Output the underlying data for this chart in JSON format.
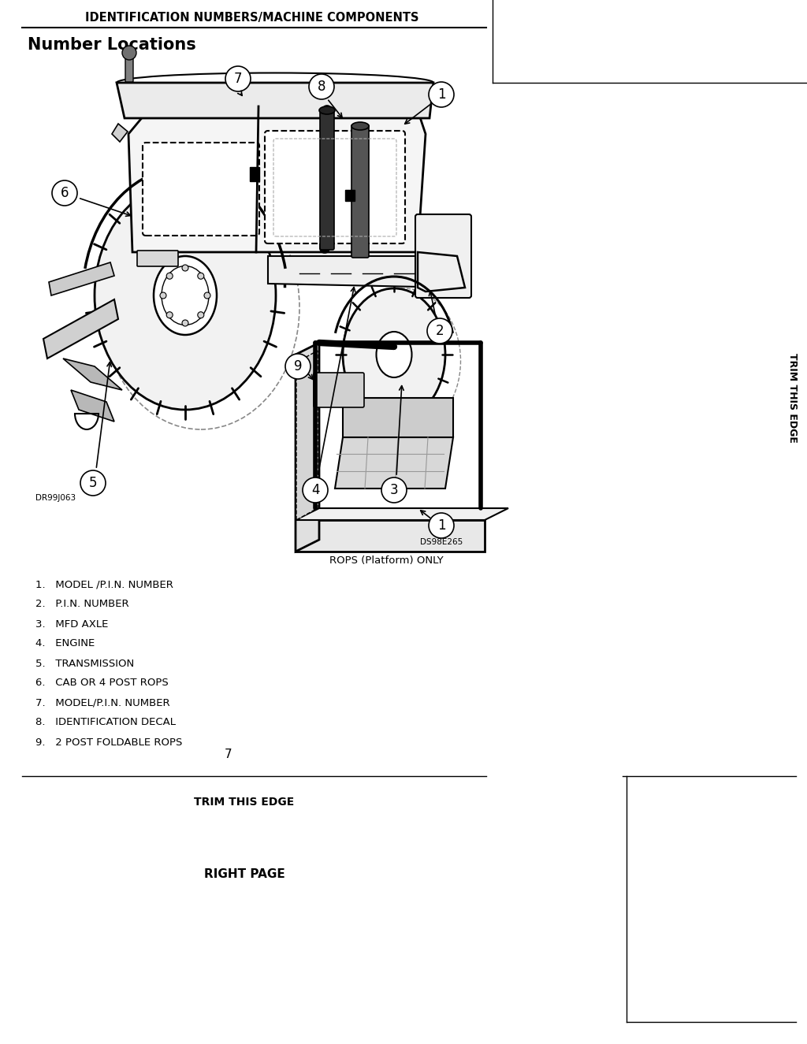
{
  "page_title": "IDENTIFICATION NUMBERS/MACHINE COMPONENTS",
  "section_title": "Number Locations",
  "items": [
    "1.   MODEL /P.I.N. NUMBER",
    "2.   P.I.N. NUMBER",
    "3.   MFD AXLE",
    "4.   ENGINE",
    "5.   TRANSMISSION",
    "6.   CAB OR 4 POST ROPS",
    "7.   MODEL/P.I.N. NUMBER",
    "8.   IDENTIFICATION DECAL",
    "9.   2 POST FOLDABLE ROPS"
  ],
  "diagram_label": "DR99J063",
  "rops_label": "DS98E265",
  "rops_caption": "ROPS (Platform) ONLY",
  "page_number": "7",
  "trim_text": "TRIM THIS EDGE",
  "right_page_text": "RIGHT PAGE",
  "bg_color": "#ffffff",
  "text_color": "#000000",
  "title_fontsize": 11,
  "section_fontsize": 15,
  "body_fontsize": 9.5,
  "sidebar_text": "TRIM THIS EDGE"
}
